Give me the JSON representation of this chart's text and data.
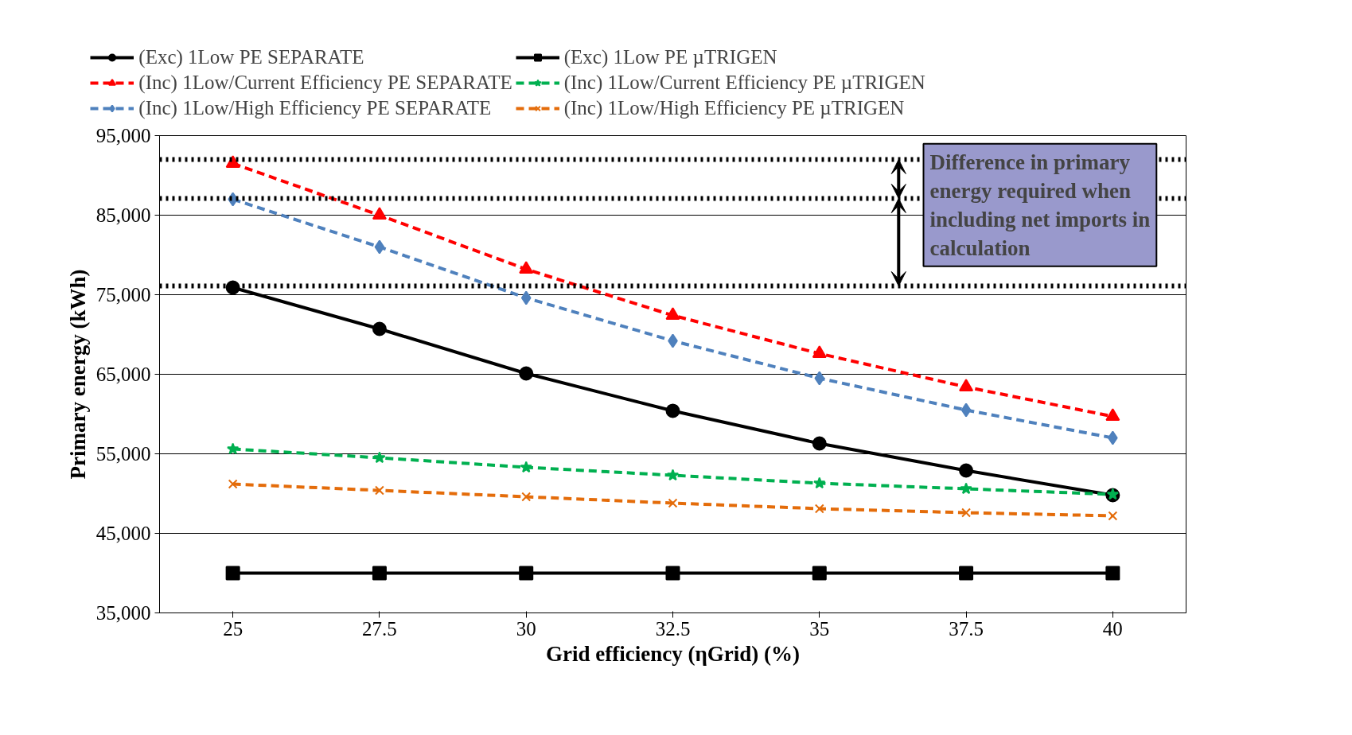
{
  "chart_data": {
    "type": "line",
    "xlabel": "Grid efficiency (ηGrid) (%)",
    "ylabel": "Primary energy (kWh)",
    "x": [
      25,
      27.5,
      30,
      32.5,
      35,
      37.5,
      40
    ],
    "series": [
      {
        "name": "(Exc) 1Low PE SEPARATE",
        "color": "#000000",
        "marker": "circle",
        "line_style": "solid",
        "values": [
          75900,
          70700,
          65100,
          60400,
          56300,
          52900,
          49800
        ]
      },
      {
        "name": "(Exc) 1Low PE µTRIGEN",
        "color": "#000000",
        "marker": "square",
        "line_style": "solid",
        "values": [
          40000,
          40000,
          40000,
          40000,
          40000,
          40000,
          40000
        ]
      },
      {
        "name": "(Inc) 1Low/Current Efficiency PE SEPARATE",
        "color": "#ff0000",
        "marker": "triangle",
        "line_style": "dashed",
        "values": [
          91500,
          85000,
          78200,
          72400,
          67600,
          63400,
          59700
        ]
      },
      {
        "name": "(Inc) 1Low/Current Efficiency PE µTRIGEN",
        "color": "#00b050",
        "marker": "star",
        "line_style": "dashed",
        "values": [
          55600,
          54500,
          53300,
          52300,
          51300,
          50600,
          49900
        ]
      },
      {
        "name": "(Inc) 1Low/High Efficiency PE SEPARATE",
        "color": "#4f81bd",
        "marker": "diamond",
        "line_style": "dashed",
        "values": [
          87000,
          81000,
          74600,
          69200,
          64500,
          60500,
          57000
        ]
      },
      {
        "name": "(Inc) 1Low/High Efficiency PE µTRIGEN",
        "color": "#e46c0a",
        "marker": "cross",
        "line_style": "dashed",
        "values": [
          51200,
          50400,
          49600,
          48800,
          48100,
          47600,
          47200
        ]
      }
    ],
    "xlim": [
      23.75,
      41.25
    ],
    "xticks": [
      25,
      27.5,
      30,
      32.5,
      35,
      37.5,
      40
    ],
    "ylim": [
      35000,
      95000
    ],
    "yticks": [
      {
        "value": 35000,
        "label": "35,000"
      },
      {
        "value": 45000,
        "label": "45,000"
      },
      {
        "value": 55000,
        "label": "55,000"
      },
      {
        "value": 65000,
        "label": "65,000"
      },
      {
        "value": 75000,
        "label": "75,000"
      },
      {
        "value": 85000,
        "label": "85,000"
      },
      {
        "value": 95000,
        "label": "95,000"
      }
    ],
    "grid": "y",
    "legend": "top",
    "ref_lines": [
      {
        "axis": "y",
        "value": 92000,
        "color": "#000000",
        "line_style": "dotted"
      },
      {
        "axis": "y",
        "value": 87100,
        "color": "#000000",
        "line_style": "dotted"
      },
      {
        "axis": "y",
        "value": 76100,
        "color": "#000000",
        "line_style": "dotted"
      }
    ],
    "annotations": [
      "Difference in primary energy required when including net imports in calculation"
    ]
  }
}
